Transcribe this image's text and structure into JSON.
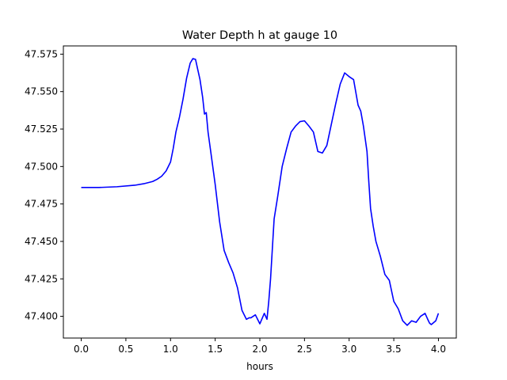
{
  "chart_data": {
    "type": "line",
    "title": "Water Depth h at gauge 10",
    "xlabel": "hours",
    "ylabel": "",
    "xlim": [
      -0.2,
      4.2
    ],
    "ylim": [
      47.3855,
      47.5805
    ],
    "xticks": [
      0.0,
      0.5,
      1.0,
      1.5,
      2.0,
      2.5,
      3.0,
      3.5,
      4.0
    ],
    "xtick_labels": [
      "0.0",
      "0.5",
      "1.0",
      "1.5",
      "2.0",
      "2.5",
      "3.0",
      "3.5",
      "4.0"
    ],
    "yticks": [
      47.4,
      47.425,
      47.45,
      47.475,
      47.5,
      47.525,
      47.55,
      47.575
    ],
    "ytick_labels": [
      "47.400",
      "47.425",
      "47.450",
      "47.475",
      "47.500",
      "47.525",
      "47.550",
      "47.575"
    ],
    "grid": false,
    "series": [
      {
        "color": "#0000ff",
        "x": [
          0.0,
          0.2,
          0.4,
          0.6,
          0.7,
          0.8,
          0.85,
          0.9,
          0.95,
          1.0,
          1.03,
          1.06,
          1.1,
          1.14,
          1.18,
          1.22,
          1.25,
          1.28,
          1.3,
          1.33,
          1.36,
          1.38,
          1.4,
          1.42,
          1.45,
          1.5,
          1.55,
          1.6,
          1.65,
          1.7,
          1.75,
          1.8,
          1.85,
          1.88,
          1.9,
          1.95,
          2.0,
          2.05,
          2.08,
          2.1,
          2.12,
          2.14,
          2.16,
          2.2,
          2.25,
          2.3,
          2.35,
          2.4,
          2.45,
          2.5,
          2.55,
          2.6,
          2.65,
          2.7,
          2.75,
          2.8,
          2.85,
          2.9,
          2.95,
          3.0,
          3.05,
          3.1,
          3.13,
          3.16,
          3.2,
          3.22,
          3.24,
          3.27,
          3.3,
          3.35,
          3.4,
          3.45,
          3.5,
          3.55,
          3.6,
          3.65,
          3.7,
          3.75,
          3.8,
          3.85,
          3.88,
          3.9,
          3.92,
          3.95,
          3.97,
          4.0
        ],
        "y": [
          47.486,
          47.486,
          47.4865,
          47.4875,
          47.4885,
          47.49,
          47.4915,
          47.4935,
          47.497,
          47.503,
          47.512,
          47.523,
          47.533,
          47.545,
          47.559,
          47.569,
          47.572,
          47.5715,
          47.566,
          47.558,
          47.546,
          47.535,
          47.536,
          47.523,
          47.51,
          47.488,
          47.463,
          47.444,
          47.436,
          47.429,
          47.419,
          47.404,
          47.398,
          47.399,
          47.399,
          47.401,
          47.395,
          47.402,
          47.398,
          47.41,
          47.425,
          47.445,
          47.465,
          47.48,
          47.5,
          47.512,
          47.523,
          47.527,
          47.53,
          47.5305,
          47.527,
          47.523,
          47.51,
          47.509,
          47.514,
          47.528,
          47.542,
          47.555,
          47.5625,
          47.56,
          47.558,
          47.541,
          47.537,
          47.527,
          47.51,
          47.49,
          47.472,
          47.46,
          47.45,
          47.44,
          47.428,
          47.424,
          47.41,
          47.405,
          47.397,
          47.394,
          47.397,
          47.396,
          47.4,
          47.402,
          47.398,
          47.3955,
          47.3945,
          47.396,
          47.397,
          47.402
        ]
      }
    ]
  }
}
